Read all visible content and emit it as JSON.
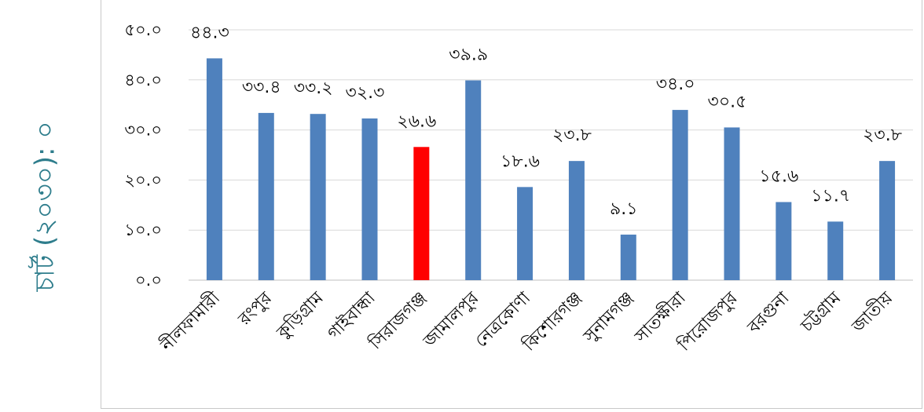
{
  "side_label": "চার্ট (২০৩০): ০",
  "colors": {
    "bar": "#4f81bd",
    "highlight": "#ff0000"
  },
  "chart_data": {
    "type": "bar",
    "categories": [
      "নীলফামারী",
      "রংপুর",
      "কুড়িগ্রাম",
      "গাইবান্ধা",
      "সিরাজগঞ্জ",
      "জামালপুর",
      "নেত্রকোণা",
      "কিশোরগঞ্জ",
      "সুনামগঞ্জ",
      "সাতক্ষীরা",
      "পিরোজপুর",
      "বরগুনা",
      "চট্টগ্রাম",
      "জাতীয়"
    ],
    "values": [
      44.3,
      33.4,
      33.2,
      32.3,
      26.6,
      39.9,
      18.6,
      23.8,
      9.1,
      34.0,
      30.5,
      15.6,
      11.7,
      23.8
    ],
    "data_labels": [
      "৪৪.৩",
      "৩৩.৪",
      "৩৩.২",
      "৩২.৩",
      "২৬.৬",
      "৩৯.৯",
      "১৮.৬",
      "২৩.৮",
      "৯.১",
      "৩৪.০",
      "৩০.৫",
      "১৫.৬",
      "১১.৭",
      "২৩.৮"
    ],
    "highlight_index": 4,
    "ylim": [
      0,
      50
    ],
    "yticks": [
      0,
      10,
      20,
      30,
      40,
      50
    ],
    "ytick_labels": [
      "০.০",
      "১০.০",
      "২০.০",
      "৩০.০",
      "৪০.০",
      "৫০.০"
    ],
    "grid": true,
    "legend": "none"
  }
}
